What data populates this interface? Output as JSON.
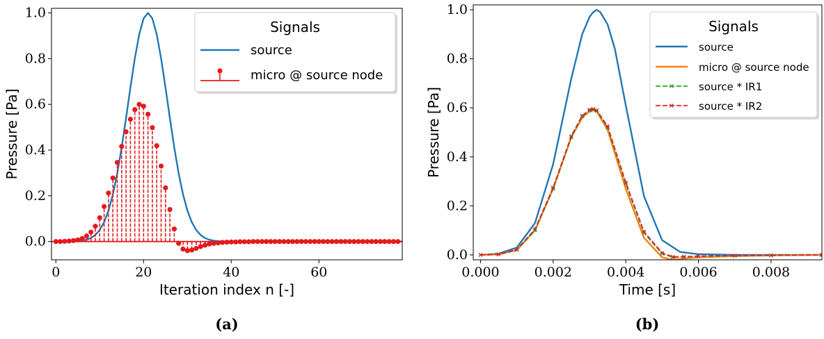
{
  "chart_data": [
    {
      "type": "line",
      "caption": "(a)",
      "xlabel": "Iteration index n [-]",
      "ylabel": "Pressure [Pa]",
      "xlim": [
        -1,
        79
      ],
      "ylim": [
        -0.08,
        1.02
      ],
      "xticks": [
        0,
        20,
        40,
        60
      ],
      "xtick_labels": [
        "0",
        "20",
        "40",
        "60"
      ],
      "yticks": [
        0.0,
        0.2,
        0.4,
        0.6,
        0.8,
        1.0
      ],
      "ytick_labels": [
        "0.0",
        "0.2",
        "0.4",
        "0.6",
        "0.8",
        "1.0"
      ],
      "grid": false,
      "legend": {
        "title": "Signals",
        "placement": "upper-right"
      },
      "series": [
        {
          "name": "source",
          "style": "line",
          "color": "#1f77b4",
          "gaussian": {
            "center": 21,
            "sigma": 4.5,
            "amplitude": 1.0,
            "range": [
              0,
              79
            ],
            "step": 1
          }
        },
        {
          "name": "micro @ source node",
          "style": "stem",
          "color": "#e41a1c",
          "x": [
            0,
            1,
            2,
            3,
            4,
            5,
            6,
            7,
            8,
            9,
            10,
            11,
            12,
            13,
            14,
            15,
            16,
            17,
            18,
            19,
            20,
            21,
            22,
            23,
            24,
            25,
            26,
            27,
            28,
            29,
            30,
            31,
            32,
            33,
            34,
            35,
            36,
            37,
            38,
            39,
            40,
            41,
            42,
            43,
            44,
            45,
            46,
            47,
            48,
            49,
            50,
            51,
            52,
            53,
            54,
            55,
            56,
            57,
            58,
            59,
            60,
            61,
            62,
            63,
            64,
            65,
            66,
            67,
            68,
            69,
            70,
            71,
            72,
            73,
            74,
            75,
            76,
            77,
            78
          ],
          "y": [
            0.0,
            0.0,
            0.001,
            0.002,
            0.004,
            0.007,
            0.013,
            0.024,
            0.041,
            0.067,
            0.104,
            0.153,
            0.212,
            0.278,
            0.346,
            0.416,
            0.48,
            0.535,
            0.577,
            0.6,
            0.592,
            0.557,
            0.498,
            0.419,
            0.33,
            0.235,
            0.14,
            0.055,
            -0.008,
            -0.033,
            -0.04,
            -0.037,
            -0.03,
            -0.022,
            -0.016,
            -0.011,
            -0.008,
            -0.006,
            -0.004,
            -0.003,
            -0.002,
            -0.002,
            -0.001,
            -0.001,
            -0.001,
            0.0,
            0.0,
            0.0,
            0.0,
            0.0,
            0.0,
            0.0,
            0.0,
            0.0,
            0.0,
            0.0,
            0.0,
            0.0,
            0.0,
            0.0,
            0.0,
            0.0,
            0.0,
            0.0,
            0.0,
            0.0,
            0.0,
            0.0,
            0.0,
            0.0,
            0.0,
            0.0,
            0.0,
            0.0,
            0.0,
            0.0,
            0.0,
            0.0,
            0.0
          ]
        }
      ]
    },
    {
      "type": "line",
      "caption": "(b)",
      "xlabel": "Time [s]",
      "ylabel": "Pressure [Pa]",
      "xlim": [
        -0.0002,
        0.0094
      ],
      "ylim": [
        -0.02,
        1.02
      ],
      "xticks": [
        0.0,
        0.002,
        0.004,
        0.006,
        0.008
      ],
      "xtick_labels": [
        "0.000",
        "0.002",
        "0.004",
        "0.006",
        "0.008"
      ],
      "yticks": [
        0.0,
        0.2,
        0.4,
        0.6,
        0.8,
        1.0
      ],
      "ytick_labels": [
        "0.0",
        "0.2",
        "0.4",
        "0.6",
        "0.8",
        "1.0"
      ],
      "grid": false,
      "legend": {
        "title": "Signals",
        "placement": "upper-right"
      },
      "series": [
        {
          "name": "source",
          "style": "line",
          "color": "#1f77b4",
          "x": [
            0.0,
            0.0005,
            0.001,
            0.0015,
            0.002,
            0.0025,
            0.0028,
            0.003,
            0.0031,
            0.0032,
            0.0033,
            0.0035,
            0.0037,
            0.004,
            0.0045,
            0.005,
            0.0055,
            0.006,
            0.007,
            0.008,
            0.0094
          ],
          "y": [
            0.0,
            0.005,
            0.03,
            0.13,
            0.37,
            0.72,
            0.9,
            0.97,
            0.99,
            1.0,
            0.99,
            0.94,
            0.84,
            0.61,
            0.24,
            0.06,
            0.012,
            0.003,
            0.0,
            0.0,
            0.0
          ]
        },
        {
          "name": "micro @ source node",
          "style": "line",
          "color": "#ff7f0e",
          "x": [
            0.0,
            0.0005,
            0.001,
            0.0015,
            0.002,
            0.0025,
            0.0028,
            0.003,
            0.0031,
            0.0032,
            0.0035,
            0.004,
            0.0045,
            0.005,
            0.0053,
            0.0056,
            0.006,
            0.007,
            0.008,
            0.0094
          ],
          "y": [
            0.0,
            0.002,
            0.02,
            0.1,
            0.27,
            0.48,
            0.56,
            0.585,
            0.59,
            0.585,
            0.51,
            0.27,
            0.07,
            -0.01,
            -0.02,
            -0.015,
            -0.01,
            -0.005,
            -0.002,
            0.0
          ]
        },
        {
          "name": "source * IR1",
          "style": "dash-marker",
          "marker": "x",
          "color": "#2ca02c",
          "x": [
            0.0,
            0.0005,
            0.001,
            0.0015,
            0.002,
            0.0025,
            0.0028,
            0.003,
            0.0031,
            0.0032,
            0.0035,
            0.004,
            0.0045,
            0.005,
            0.0053,
            0.0056,
            0.006,
            0.007,
            0.008,
            0.0094
          ],
          "y": [
            0.0,
            0.002,
            0.02,
            0.1,
            0.27,
            0.48,
            0.565,
            0.588,
            0.592,
            0.588,
            0.52,
            0.29,
            0.09,
            0.005,
            -0.01,
            -0.008,
            -0.006,
            -0.004,
            -0.002,
            0.0
          ]
        },
        {
          "name": "source * IR2",
          "style": "dash-marker",
          "marker": "x",
          "color": "#d62728",
          "x": [
            0.0,
            0.0005,
            0.001,
            0.0015,
            0.002,
            0.0025,
            0.0028,
            0.003,
            0.0031,
            0.0032,
            0.0035,
            0.004,
            0.0045,
            0.005,
            0.0053,
            0.0056,
            0.006,
            0.007,
            0.008,
            0.0094
          ],
          "y": [
            0.0,
            0.002,
            0.022,
            0.105,
            0.275,
            0.485,
            0.568,
            0.592,
            0.595,
            0.59,
            0.525,
            0.295,
            0.095,
            0.008,
            -0.008,
            -0.007,
            -0.005,
            -0.003,
            -0.002,
            0.0
          ]
        }
      ]
    }
  ]
}
